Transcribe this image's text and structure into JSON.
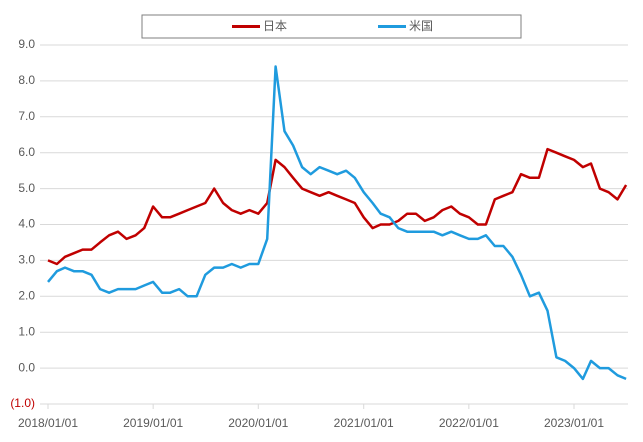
{
  "chart_data": {
    "type": "line",
    "x": [
      "2018/01/01",
      "2018/02/01",
      "2018/03/01",
      "2018/04/01",
      "2018/05/01",
      "2018/06/01",
      "2018/07/01",
      "2018/08/01",
      "2018/09/01",
      "2018/10/01",
      "2018/11/01",
      "2018/12/01",
      "2019/01/01",
      "2019/02/01",
      "2019/03/01",
      "2019/04/01",
      "2019/05/01",
      "2019/06/01",
      "2019/07/01",
      "2019/08/01",
      "2019/09/01",
      "2019/10/01",
      "2019/11/01",
      "2019/12/01",
      "2020/01/01",
      "2020/02/01",
      "2020/03/01",
      "2020/04/01",
      "2020/05/01",
      "2020/06/01",
      "2020/07/01",
      "2020/08/01",
      "2020/09/01",
      "2020/10/01",
      "2020/11/01",
      "2020/12/01",
      "2021/01/01",
      "2021/02/01",
      "2021/03/01",
      "2021/04/01",
      "2021/05/01",
      "2021/06/01",
      "2021/07/01",
      "2021/08/01",
      "2021/09/01",
      "2021/10/01",
      "2021/11/01",
      "2021/12/01",
      "2022/01/01",
      "2022/02/01",
      "2022/03/01",
      "2022/04/01",
      "2022/05/01",
      "2022/06/01",
      "2022/07/01",
      "2022/08/01",
      "2022/09/01",
      "2022/10/01",
      "2022/11/01",
      "2022/12/01",
      "2023/01/01",
      "2023/02/01",
      "2023/03/01",
      "2023/04/01",
      "2023/05/01",
      "2023/06/01",
      "2023/07/01"
    ],
    "series": [
      {
        "name": "日本",
        "color": "#c00000",
        "values": [
          3.0,
          2.9,
          3.1,
          3.2,
          3.3,
          3.3,
          3.5,
          3.7,
          3.8,
          3.6,
          3.7,
          3.9,
          4.5,
          4.2,
          4.2,
          4.3,
          4.4,
          4.5,
          4.6,
          5.0,
          4.6,
          4.4,
          4.3,
          4.4,
          4.3,
          4.6,
          5.8,
          5.6,
          5.3,
          5.0,
          4.9,
          4.8,
          4.9,
          4.8,
          4.7,
          4.6,
          4.2,
          3.9,
          4.0,
          4.0,
          4.1,
          4.3,
          4.3,
          4.1,
          4.2,
          4.4,
          4.5,
          4.3,
          4.2,
          4.0,
          4.0,
          4.7,
          4.8,
          4.9,
          5.4,
          5.3,
          5.3,
          6.1,
          6.0,
          5.9,
          5.8,
          5.6,
          5.7,
          5.0,
          4.9,
          4.7,
          5.1
        ]
      },
      {
        "name": "米国",
        "color": "#1f9bde",
        "values": [
          2.4,
          2.7,
          2.8,
          2.7,
          2.7,
          2.6,
          2.2,
          2.1,
          2.2,
          2.2,
          2.2,
          2.3,
          2.4,
          2.1,
          2.1,
          2.2,
          2.0,
          2.0,
          2.6,
          2.8,
          2.8,
          2.9,
          2.8,
          2.9,
          2.9,
          3.6,
          8.4,
          6.6,
          6.2,
          5.6,
          5.4,
          5.6,
          5.5,
          5.4,
          5.5,
          5.3,
          4.9,
          4.6,
          4.3,
          4.2,
          3.9,
          3.8,
          3.8,
          3.8,
          3.8,
          3.7,
          3.8,
          3.7,
          3.6,
          3.6,
          3.7,
          3.4,
          3.4,
          3.1,
          2.6,
          2.0,
          2.1,
          1.6,
          0.3,
          0.2,
          0.0,
          -0.3,
          0.2,
          0.0,
          0.0,
          -0.2,
          -0.3
        ]
      }
    ],
    "ylim": [
      -1,
      9
    ],
    "yticks": [
      {
        "value": -1,
        "label": "(1.0)"
      },
      {
        "value": 0,
        "label": "0.0"
      },
      {
        "value": 1,
        "label": "1.0"
      },
      {
        "value": 2,
        "label": "2.0"
      },
      {
        "value": 3,
        "label": "3.0"
      },
      {
        "value": 4,
        "label": "4.0"
      },
      {
        "value": 5,
        "label": "5.0"
      },
      {
        "value": 6,
        "label": "6.0"
      },
      {
        "value": 7,
        "label": "7.0"
      },
      {
        "value": 8,
        "label": "8.0"
      },
      {
        "value": 9,
        "label": "9.0"
      }
    ],
    "xticks": [
      "2018/01/01",
      "2019/01/01",
      "2020/01/01",
      "2021/01/01",
      "2022/01/01",
      "2023/01/01"
    ],
    "negative_tick_color": "#c00000",
    "grid": true,
    "legend": "top"
  }
}
